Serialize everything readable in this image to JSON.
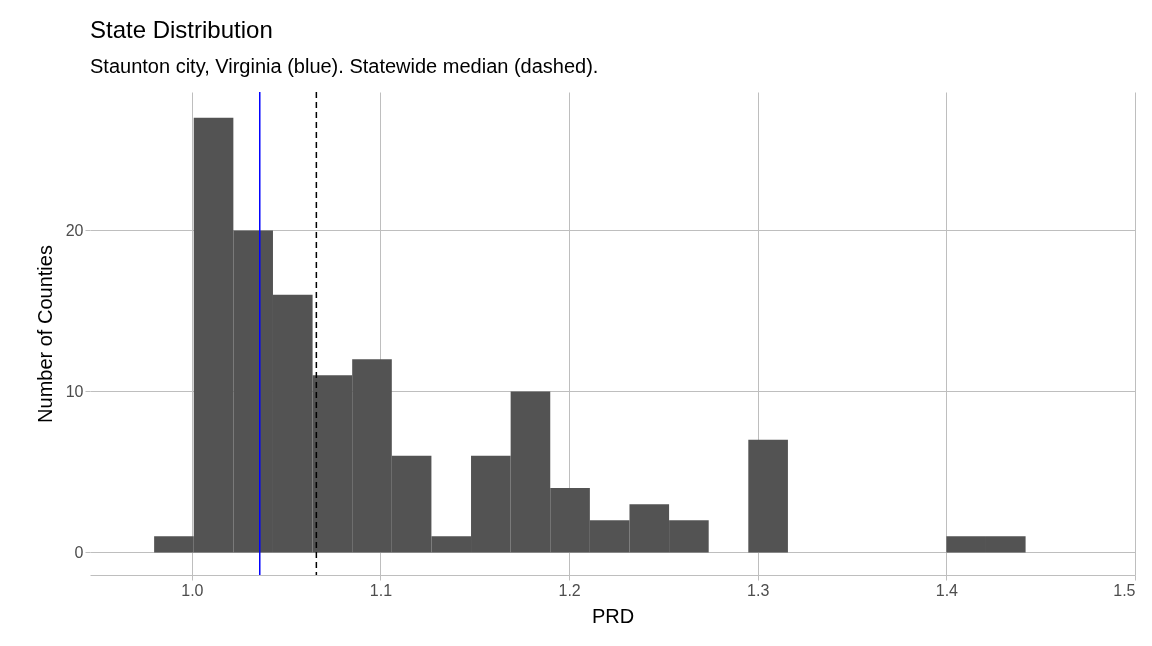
{
  "chart_data": {
    "type": "histogram",
    "title": "State Distribution",
    "subtitle": "Staunton city, Virginia (blue). Statewide median (dashed).",
    "xlabel": "PRD",
    "ylabel": "Number of Counties",
    "bins": [
      0.98,
      1.001,
      1.022,
      1.043,
      1.064,
      1.085,
      1.106,
      1.127,
      1.148,
      1.169,
      1.19,
      1.211,
      1.232,
      1.253,
      1.274,
      1.295,
      1.316,
      1.337,
      1.358,
      1.379,
      1.4,
      1.421,
      1.442
    ],
    "values": [
      1,
      27,
      20,
      16,
      11,
      12,
      6,
      1,
      6,
      10,
      4,
      2,
      3,
      2,
      0,
      7,
      0,
      0,
      0,
      0,
      1,
      1
    ],
    "color": "#535353",
    "xlim": [
      0.946,
      1.5
    ],
    "xticks": [
      {
        "value": 1.0,
        "label": "1.0"
      },
      {
        "value": 1.1,
        "label": "1.1"
      },
      {
        "value": 1.2,
        "label": "1.2"
      },
      {
        "value": 1.3,
        "label": "1.3"
      },
      {
        "value": 1.4,
        "label": "1.4"
      },
      {
        "value": 1.5,
        "label": "1.5"
      }
    ],
    "ylim": [
      -1.4,
      28.6
    ],
    "yticks": [
      0,
      10,
      20
    ],
    "ref_lines": [
      {
        "axis": "x",
        "value": 1.036,
        "color": "#0000ff",
        "line_style": "solid"
      },
      {
        "axis": "x",
        "value": 1.066,
        "color": "#000000",
        "line_style": "dashed"
      }
    ],
    "grid": true
  }
}
